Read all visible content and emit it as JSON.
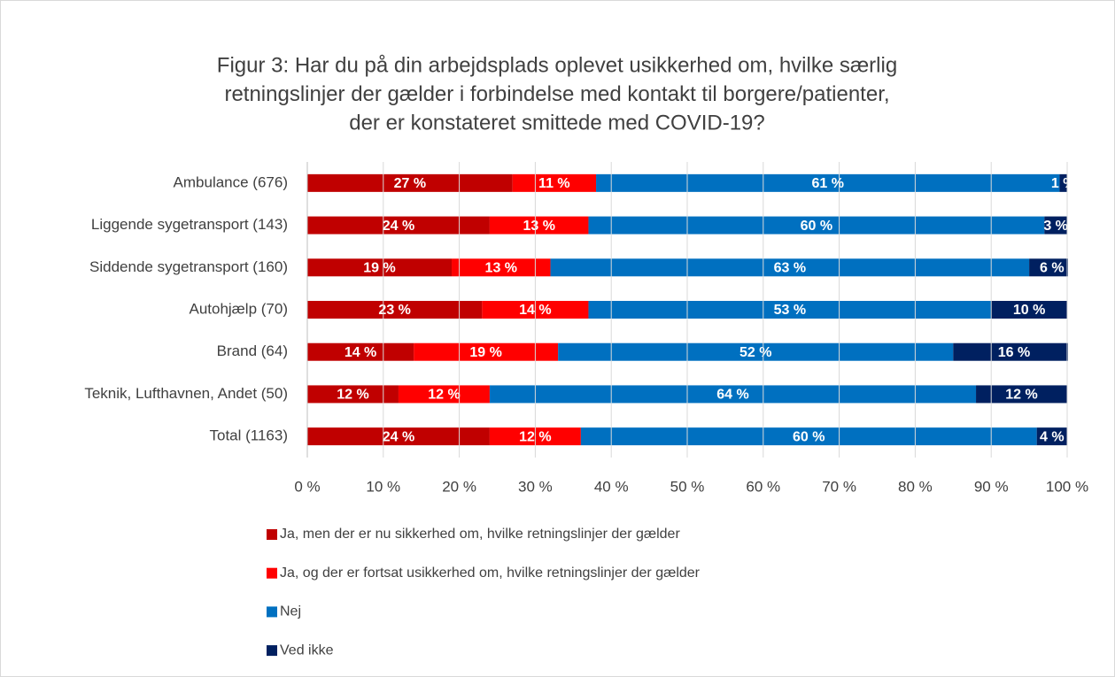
{
  "chart_data": {
    "type": "stacked_bar_horizontal",
    "title": [
      "Figur 3: Har du på din arbejdsplads oplevet usikkerhed om, hvilke særlig",
      "retningslinjer der gælder i forbindelse med kontakt til borgere/patienter,",
      "der er konstateret smittede med COVID-19?"
    ],
    "categories": [
      "Ambulance (676)",
      "Liggende sygetransport (143)",
      "Siddende sygetransport (160)",
      "Autohjælp (70)",
      "Brand (64)",
      "Teknik, Lufthavnen, Andet (50)",
      "Total (1163)"
    ],
    "series": [
      {
        "name": "Ja, men der er nu sikkerhed om, hvilke retningslinjer der gælder",
        "color": "#c00000",
        "values": [
          27,
          24,
          19,
          23,
          14,
          12,
          24
        ],
        "value_labels": [
          "27 %",
          "24 %",
          "19 %",
          "23 %",
          "14 %",
          "12 %",
          "24 %"
        ]
      },
      {
        "name": "Ja, og der er fortsat usikkerhed om, hvilke retningslinjer der gælder",
        "color": "#ff0000",
        "values": [
          11,
          13,
          13,
          14,
          19,
          12,
          12
        ],
        "value_labels": [
          "11 %",
          "13 %",
          "13 %",
          "14 %",
          "19 %",
          "12 %",
          "12 %"
        ]
      },
      {
        "name": "Nej",
        "color": "#0070c0",
        "values": [
          61,
          60,
          63,
          53,
          52,
          64,
          60
        ],
        "value_labels": [
          "61 %",
          "60 %",
          "63 %",
          "53 %",
          "52 %",
          "64 %",
          "60 %"
        ]
      },
      {
        "name": "Ved ikke",
        "color": "#002060",
        "values": [
          1,
          3,
          6,
          10,
          16,
          12,
          4
        ],
        "value_labels": [
          "1 %",
          "3 %",
          "6 %",
          "10 %",
          "16 %",
          "12 %",
          "4 %"
        ]
      }
    ],
    "xlim": [
      0,
      100
    ],
    "xticks": [
      {
        "value": 0,
        "label": "0 %"
      },
      {
        "value": 10,
        "label": "10 %"
      },
      {
        "value": 20,
        "label": "20 %"
      },
      {
        "value": 30,
        "label": "30 %"
      },
      {
        "value": 40,
        "label": "40 %"
      },
      {
        "value": 50,
        "label": "50 %"
      },
      {
        "value": 60,
        "label": "60 %"
      },
      {
        "value": 70,
        "label": "70 %"
      },
      {
        "value": 80,
        "label": "80 %"
      },
      {
        "value": 90,
        "label": "90 %"
      },
      {
        "value": 100,
        "label": "100 %"
      }
    ],
    "grid": true,
    "legend": "bottom"
  }
}
